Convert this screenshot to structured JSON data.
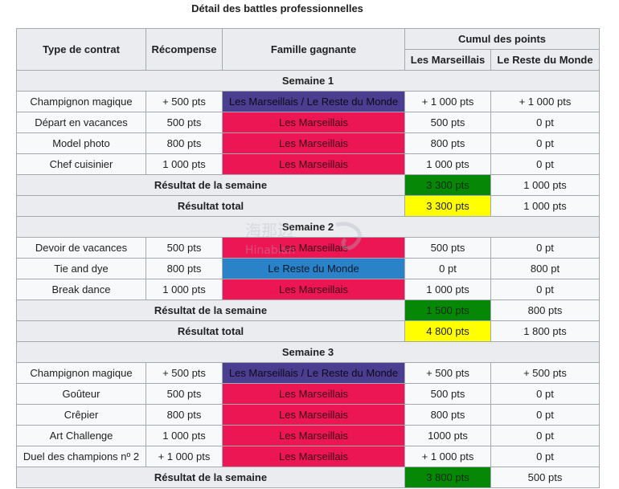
{
  "caption": "Détail des battles professionnelles",
  "headers": {
    "contract": "Type de contrat",
    "reward": "Récompense",
    "winner": "Famille gagnante",
    "cumul": "Cumul des points",
    "team1": "Les Marseillais",
    "team2": "Le Reste du Monde"
  },
  "colors": {
    "both": "#4b3d8f",
    "marseillais": "#ec1654",
    "reste": "#2a82c9",
    "week_result": "#068806",
    "total_result": "#ffff00"
  },
  "weeks": [
    {
      "title": "Semaine 1",
      "rows": [
        {
          "contract": "Champignon magique",
          "reward": "+ 500 pts",
          "winner": "Les Marseillais / Le Reste du Monde",
          "winner_type": "both",
          "t1": "+ 1 000 pts",
          "t2": "+ 1 000 pts"
        },
        {
          "contract": "Départ en vacances",
          "reward": "500 pts",
          "winner": "Les Marseillais",
          "winner_type": "mars",
          "t1": "500 pts",
          "t2": "0 pt"
        },
        {
          "contract": "Model photo",
          "reward": "800 pts",
          "winner": "Les Marseillais",
          "winner_type": "mars",
          "t1": "800 pts",
          "t2": "0 pt"
        },
        {
          "contract": "Chef cuisinier",
          "reward": "1 000 pts",
          "winner": "Les Marseillais",
          "winner_type": "mars",
          "t1": "1 000 pts",
          "t2": "0 pt"
        }
      ],
      "week_label": "Résultat de la semaine",
      "week_t1": "3 300 pts",
      "week_t2": "1 000 pts",
      "total_label": "Résultat total",
      "total_t1": "3 300 pts",
      "total_t2": "1 000 pts"
    },
    {
      "title": "Semaine 2",
      "rows": [
        {
          "contract": "Devoir de vacances",
          "reward": "500 pts",
          "winner": "Les Marseillais",
          "winner_type": "mars",
          "t1": "500 pts",
          "t2": "0 pt"
        },
        {
          "contract": "Tie and dye",
          "reward": "800 pts",
          "winner": "Le Reste du Monde",
          "winner_type": "rest",
          "t1": "0 pt",
          "t2": "800 pt"
        },
        {
          "contract": "Break dance",
          "reward": "1 000 pts",
          "winner": "Les Marseillais",
          "winner_type": "mars",
          "t1": "1 000 pts",
          "t2": "0 pt"
        }
      ],
      "week_label": "Résultat de la semaine",
      "week_t1": "1 500 pts",
      "week_t2": "800 pts",
      "total_label": "Résultat total",
      "total_t1": "4 800 pts",
      "total_t2": "1 800 pts"
    },
    {
      "title": "Semaine 3",
      "rows": [
        {
          "contract": "Champignon magique",
          "reward": "+ 500 pts",
          "winner": "Les Marseillais / Le Reste du Monde",
          "winner_type": "both",
          "t1": "+ 500 pts",
          "t2": "+ 500 pts"
        },
        {
          "contract": "Goûteur",
          "reward": "500 pts",
          "winner": "Les Marseillais",
          "winner_type": "mars",
          "t1": "500 pts",
          "t2": "0 pt"
        },
        {
          "contract": "Crêpier",
          "reward": "800 pts",
          "winner": "Les Marseillais",
          "winner_type": "mars",
          "t1": "800 pts",
          "t2": "0 pt"
        },
        {
          "contract": "Art Challenge",
          "reward": "1 000 pts",
          "winner": "Les Marseillais",
          "winner_type": "mars",
          "t1": "1000 pts",
          "t2": "0 pt"
        },
        {
          "contract": "Duel des champions nº 2",
          "reward": "+ 1 000 pts",
          "winner": "Les Marseillais",
          "winner_type": "mars",
          "t1": "+ 1 000 pts",
          "t2": "0 pt"
        }
      ],
      "week_label": "Résultat de la semaine",
      "week_t1": "3 800 pts",
      "week_t2": "500 pts"
    }
  ],
  "watermark": {
    "cn": "海那边",
    "en": "Hinabian"
  }
}
